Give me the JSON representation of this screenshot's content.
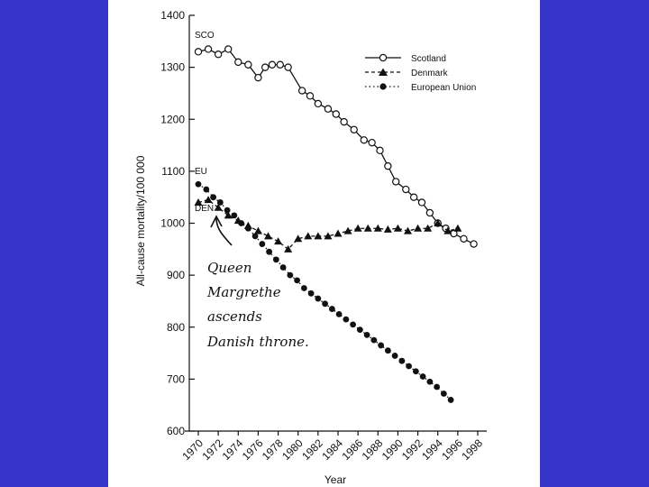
{
  "chart_data": {
    "type": "line",
    "title": "",
    "xlabel": "Year",
    "ylabel": "All-cause mortality/100 000",
    "xlim": [
      1970,
      1998
    ],
    "ylim": [
      600,
      1400
    ],
    "yticks": [
      600,
      700,
      800,
      900,
      1000,
      1100,
      1200,
      1300,
      1400
    ],
    "xticks": [
      1970,
      1972,
      1974,
      1976,
      1978,
      1980,
      1982,
      1984,
      1986,
      1988,
      1990,
      1992,
      1994,
      1996,
      1998
    ],
    "grid": false,
    "legend_position": "top-right",
    "series": [
      {
        "name": "Scotland",
        "tag": "SCO",
        "line_style": "solid",
        "marker": "open-circle",
        "x": [
          1970,
          1971,
          1972,
          1973,
          1974,
          1975,
          1976,
          1976.7,
          1977.4,
          1978.2,
          1979,
          1980.4,
          1981.2,
          1982,
          1983,
          1983.8,
          1984.6,
          1985.6,
          1986.6,
          1987.4,
          1988.2,
          1989,
          1989.8,
          1990.8,
          1991.6,
          1992.4,
          1993.2,
          1994,
          1994.8,
          1995.6,
          1996.6,
          1997.6
        ],
        "values": [
          1330,
          1335,
          1325,
          1335,
          1310,
          1305,
          1280,
          1300,
          1305,
          1305,
          1300,
          1255,
          1245,
          1230,
          1220,
          1210,
          1195,
          1180,
          1160,
          1155,
          1140,
          1110,
          1080,
          1065,
          1050,
          1040,
          1020,
          1000,
          990,
          980,
          970,
          960
        ]
      },
      {
        "name": "Denmark",
        "tag": "DEN",
        "line_style": "dashed",
        "marker": "filled-triangle",
        "x": [
          1970,
          1971,
          1972,
          1973,
          1974,
          1975,
          1976,
          1977,
          1978,
          1979,
          1980,
          1981,
          1982,
          1983,
          1984,
          1985,
          1986,
          1987,
          1988,
          1989,
          1990,
          1991,
          1992,
          1993,
          1994,
          1995,
          1996
        ],
        "values": [
          1040,
          1045,
          1030,
          1015,
          1005,
          995,
          985,
          975,
          965,
          950,
          970,
          975,
          975,
          975,
          980,
          985,
          990,
          990,
          990,
          988,
          990,
          985,
          990,
          990,
          1000,
          985,
          990
        ]
      },
      {
        "name": "European Union",
        "tag": "EU",
        "line_style": "dotted",
        "marker": "filled-circle",
        "x": [
          1970,
          1970.8,
          1971.5,
          1972.2,
          1972.9,
          1973.6,
          1974.3,
          1975,
          1975.7,
          1976.4,
          1977.1,
          1977.8,
          1978.5,
          1979.2,
          1979.9,
          1980.6,
          1981.3,
          1982,
          1982.7,
          1983.4,
          1984.1,
          1984.8,
          1985.5,
          1986.2,
          1986.9,
          1987.6,
          1988.3,
          1989,
          1989.7,
          1990.4,
          1991.1,
          1991.8,
          1992.5,
          1993.2,
          1993.9,
          1994.6,
          1995.3
        ],
        "values": [
          1075,
          1065,
          1050,
          1040,
          1025,
          1015,
          1000,
          990,
          975,
          960,
          945,
          930,
          915,
          900,
          890,
          875,
          865,
          855,
          845,
          835,
          825,
          815,
          805,
          795,
          785,
          775,
          765,
          755,
          745,
          735,
          725,
          715,
          705,
          695,
          685,
          672,
          660
        ]
      }
    ],
    "annotation": {
      "lines": [
        "Queen",
        "Margrethe",
        "ascends",
        "Danish throne."
      ],
      "points_to_year": 1972.5,
      "points_to_value": 1010
    }
  }
}
